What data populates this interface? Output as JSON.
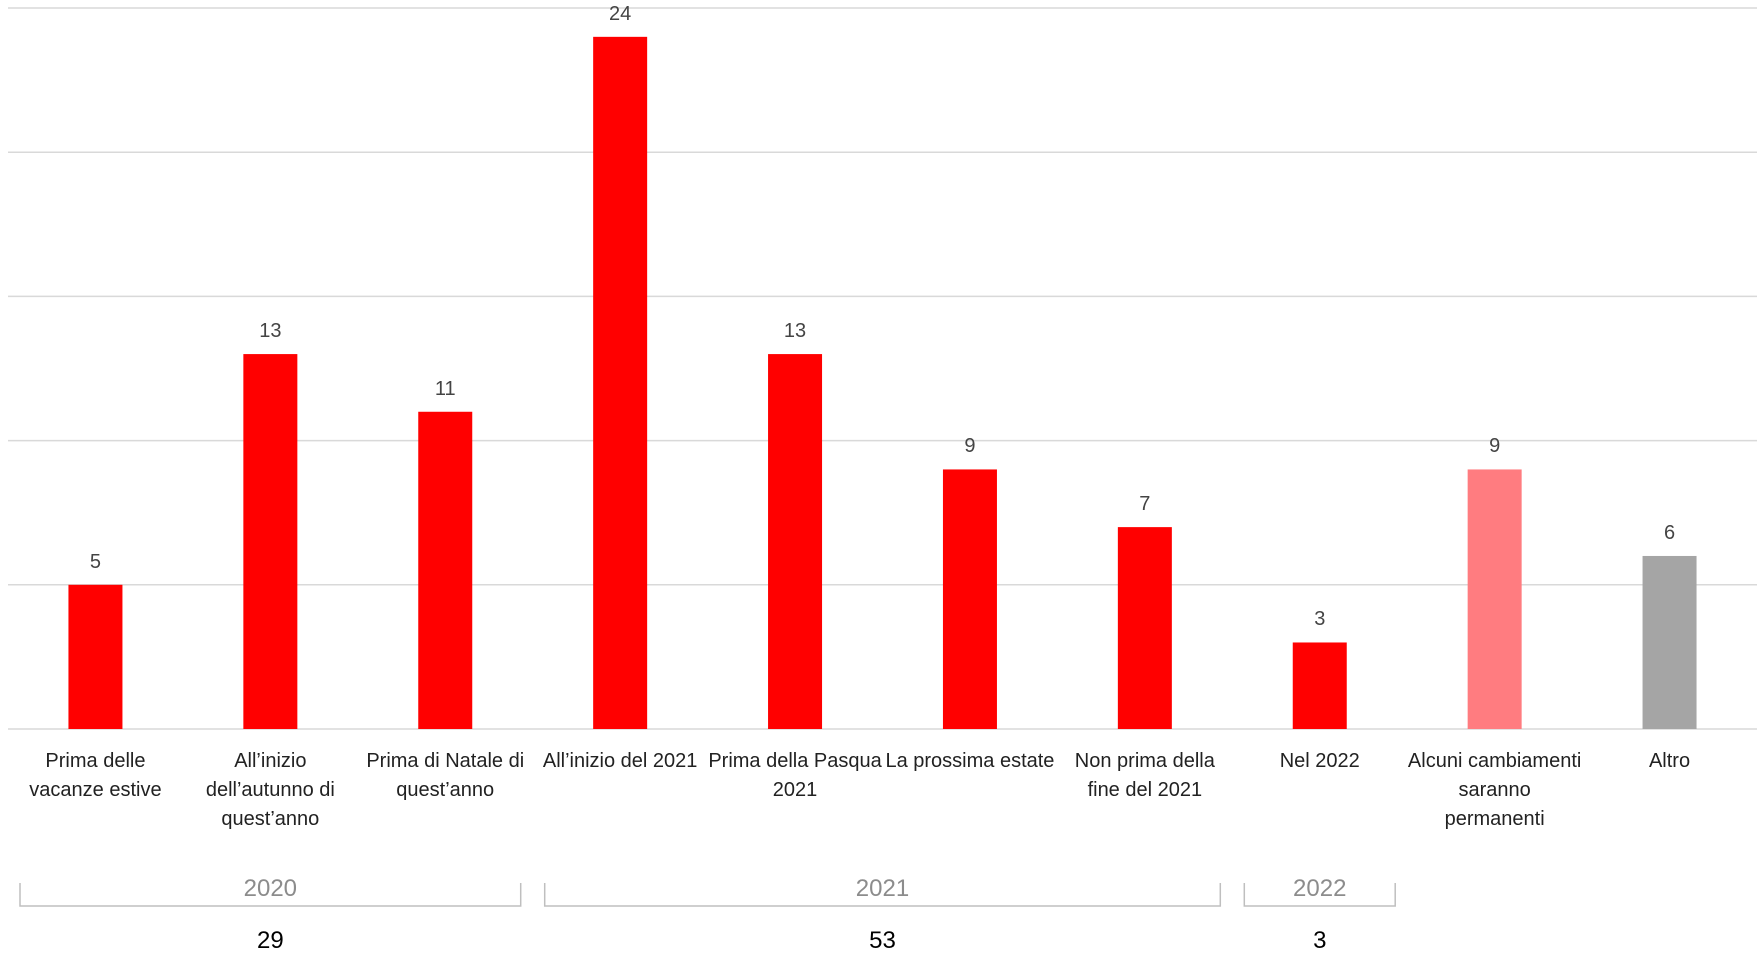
{
  "chart_data": {
    "type": "bar",
    "categories": [
      "Prima delle vacanze estive",
      "All’inizio dell’autunno di quest’anno",
      "Prima di Natale di quest’anno",
      "All’inizio del 2021",
      "Prima della Pasqua 2021",
      "La prossima estate",
      "Non prima della fine del 2021",
      "Nel 2022",
      "Alcuni cambiamenti saranno permanenti",
      "Altro"
    ],
    "values": [
      5,
      13,
      11,
      24,
      13,
      9,
      7,
      3,
      9,
      6
    ],
    "colors": [
      "#ff0000",
      "#ff0000",
      "#ff0000",
      "#ff0000",
      "#ff0000",
      "#ff0000",
      "#ff0000",
      "#ff0000",
      "#ff7c80",
      "#a5a5a5"
    ],
    "ylim": [
      0,
      25
    ],
    "yticks": [
      0,
      5,
      10,
      15,
      20,
      25
    ],
    "grid": true,
    "groups": [
      {
        "name": "2020",
        "total": 29,
        "count": 3
      },
      {
        "name": "2021",
        "total": 53,
        "count": 4
      },
      {
        "name": "2022",
        "total": 3,
        "count": 1
      }
    ]
  }
}
